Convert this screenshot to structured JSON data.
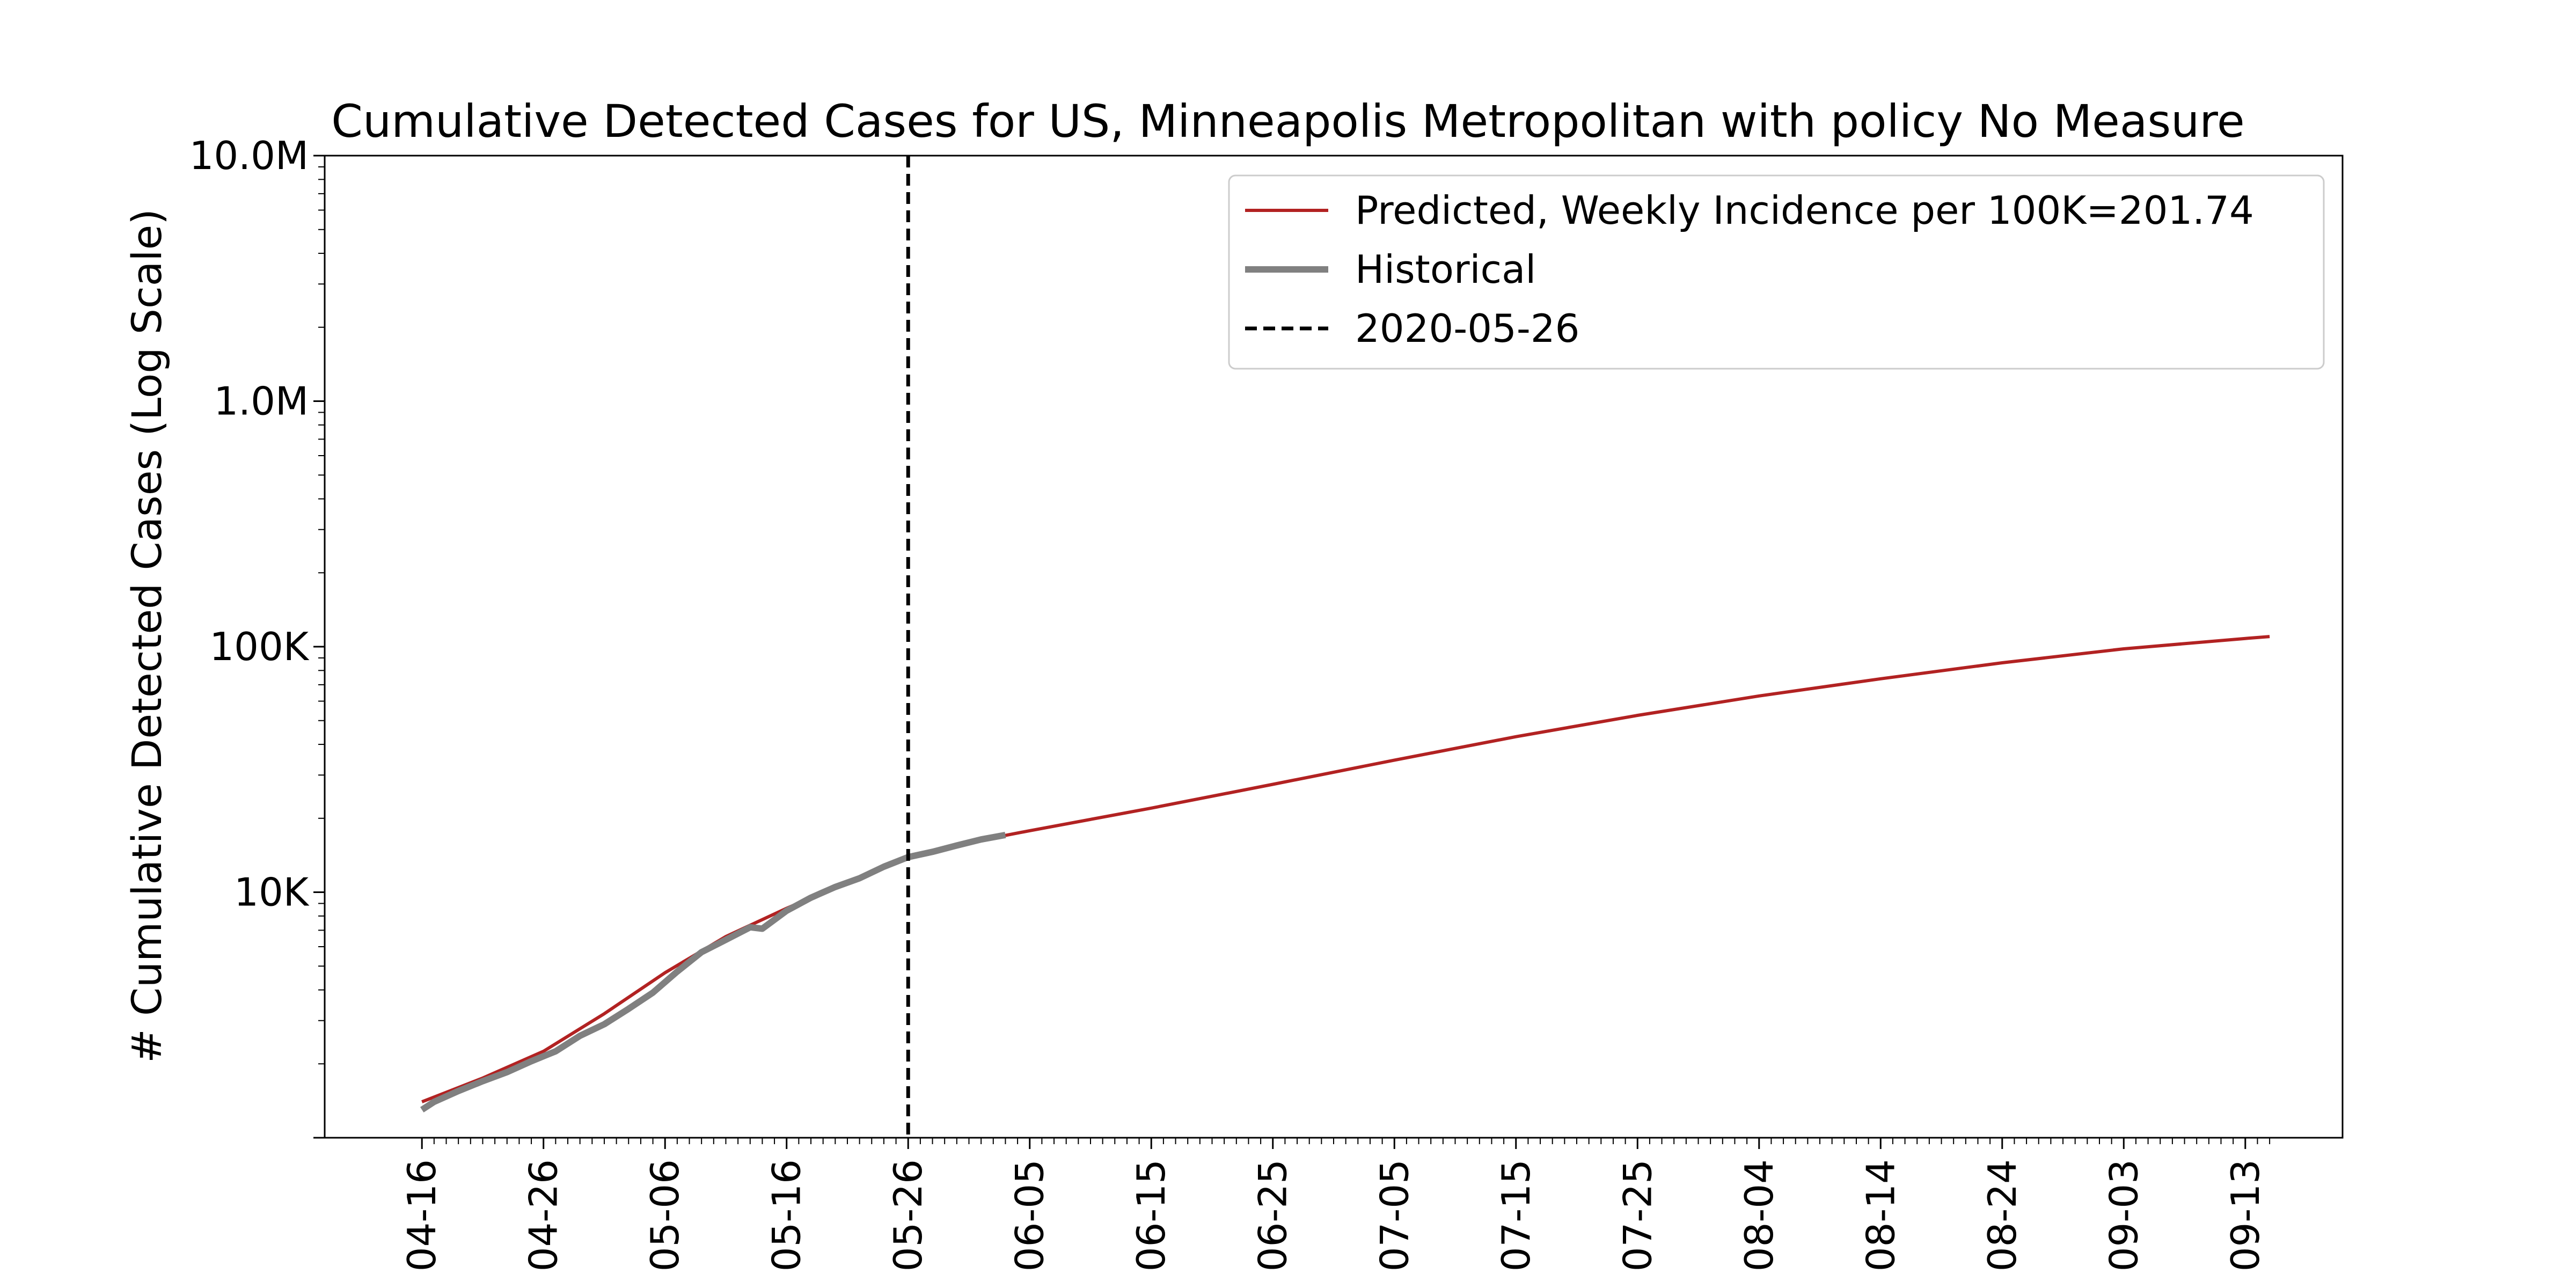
{
  "chart_data": {
    "type": "line",
    "title": "Cumulative Detected Cases for US, Minneapolis Metropolitan with policy No Measure",
    "xlabel": "",
    "ylabel": "# Cumulative Detected Cases (Log Scale)",
    "y_scale": "log",
    "ylim": [
      1000,
      10000000
    ],
    "xlim": [
      "2020-04-08",
      "2020-09-21"
    ],
    "y_tick_labels": [
      {
        "value": 10000,
        "label": "10K"
      },
      {
        "value": 100000,
        "label": "100K"
      },
      {
        "value": 1000000,
        "label": "1.0M"
      },
      {
        "value": 10000000,
        "label": "10.0M"
      }
    ],
    "x_tick_labels": [
      {
        "date": "2020-04-16",
        "label": "04-16"
      },
      {
        "date": "2020-04-26",
        "label": "04-26"
      },
      {
        "date": "2020-05-06",
        "label": "05-06"
      },
      {
        "date": "2020-05-16",
        "label": "05-16"
      },
      {
        "date": "2020-05-26",
        "label": "05-26"
      },
      {
        "date": "2020-06-05",
        "label": "06-05"
      },
      {
        "date": "2020-06-15",
        "label": "06-15"
      },
      {
        "date": "2020-06-25",
        "label": "06-25"
      },
      {
        "date": "2020-07-05",
        "label": "07-05"
      },
      {
        "date": "2020-07-15",
        "label": "07-15"
      },
      {
        "date": "2020-07-25",
        "label": "07-25"
      },
      {
        "date": "2020-08-04",
        "label": "08-04"
      },
      {
        "date": "2020-08-14",
        "label": "08-14"
      },
      {
        "date": "2020-08-24",
        "label": "08-24"
      },
      {
        "date": "2020-09-03",
        "label": "09-03"
      },
      {
        "date": "2020-09-13",
        "label": "09-13"
      }
    ],
    "grid": false,
    "legend_position": "top-right",
    "series": [
      {
        "name": "Predicted, Weekly Incidence per 100K=201.74",
        "color": "#b22222",
        "style": "solid",
        "points": [
          [
            "2020-04-16",
            1400
          ],
          [
            "2020-04-21",
            1750
          ],
          [
            "2020-04-26",
            2250
          ],
          [
            "2020-05-01",
            3200
          ],
          [
            "2020-05-06",
            4700
          ],
          [
            "2020-05-11",
            6600
          ],
          [
            "2020-05-16",
            8600
          ],
          [
            "2020-05-21",
            11000
          ],
          [
            "2020-05-26",
            13800
          ],
          [
            "2020-06-01",
            16300
          ],
          [
            "2020-06-05",
            17800
          ],
          [
            "2020-06-15",
            22000
          ],
          [
            "2020-06-25",
            27500
          ],
          [
            "2020-07-05",
            34500
          ],
          [
            "2020-07-15",
            43000
          ],
          [
            "2020-07-25",
            52500
          ],
          [
            "2020-08-04",
            63000
          ],
          [
            "2020-08-14",
            74000
          ],
          [
            "2020-08-24",
            86000
          ],
          [
            "2020-09-03",
            98000
          ],
          [
            "2020-09-13",
            108000
          ],
          [
            "2020-09-15",
            110000
          ]
        ]
      },
      {
        "name": "Historical",
        "color": "#808080",
        "style": "solid-thick",
        "points": [
          [
            "2020-04-16",
            1300
          ],
          [
            "2020-04-17",
            1400
          ],
          [
            "2020-04-19",
            1550
          ],
          [
            "2020-04-21",
            1700
          ],
          [
            "2020-04-23",
            1850
          ],
          [
            "2020-04-25",
            2050
          ],
          [
            "2020-04-27",
            2250
          ],
          [
            "2020-04-29",
            2600
          ],
          [
            "2020-05-01",
            2900
          ],
          [
            "2020-05-03",
            3350
          ],
          [
            "2020-05-05",
            3900
          ],
          [
            "2020-05-07",
            4750
          ],
          [
            "2020-05-09",
            5700
          ],
          [
            "2020-05-11",
            6400
          ],
          [
            "2020-05-13",
            7200
          ],
          [
            "2020-05-14",
            7100
          ],
          [
            "2020-05-16",
            8400
          ],
          [
            "2020-05-18",
            9500
          ],
          [
            "2020-05-20",
            10500
          ],
          [
            "2020-05-22",
            11400
          ],
          [
            "2020-05-24",
            12700
          ],
          [
            "2020-05-26",
            13900
          ],
          [
            "2020-05-28",
            14600
          ],
          [
            "2020-05-30",
            15500
          ],
          [
            "2020-06-01",
            16400
          ],
          [
            "2020-06-03",
            17100
          ]
        ]
      }
    ],
    "vertical_line": {
      "date": "2020-05-26",
      "label": "2020-05-26",
      "color": "#000000",
      "style": "dashed"
    }
  }
}
